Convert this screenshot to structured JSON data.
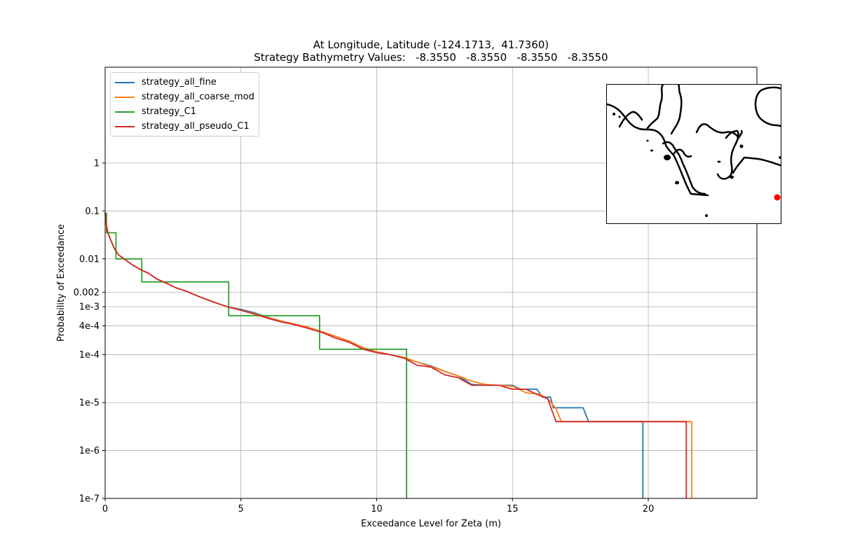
{
  "chart_data": {
    "type": "line",
    "title": "At Longitude, Latitude (-124.1713,  41.7360)",
    "subtitle": "Strategy Bathymetry Values:   -8.3550   -8.3550   -8.3550   -8.3550",
    "xlabel": "Exceedance Level for Zeta (m)",
    "ylabel": "Probability of Exceedance",
    "xlim": [
      0,
      24
    ],
    "ylim": [
      1e-07,
      100
    ],
    "yscale": "log",
    "grid": true,
    "legend_position": "top-left",
    "x_ticks": [
      0,
      5,
      10,
      15,
      20
    ],
    "x_tick_labels": [
      "0",
      "5",
      "10",
      "15",
      "20"
    ],
    "y_ticks": [
      1e-07,
      1e-06,
      1e-05,
      0.0001,
      0.0004,
      0.001,
      0.002,
      0.01,
      0.1,
      1
    ],
    "y_tick_labels": [
      "1e-7",
      "1e-6",
      "1e-5",
      "1e-4",
      "4e-4",
      "1e-3",
      "0.002",
      "0.01",
      "0.1",
      "1"
    ],
    "series": [
      {
        "name": "strategy_all_fine",
        "color": "#1f77b4",
        "x": [
          0.0,
          0.05,
          0.1,
          0.2,
          0.35,
          0.5,
          0.75,
          1.0,
          1.3,
          1.6,
          1.9,
          2.2,
          2.6,
          3.0,
          3.5,
          4.0,
          4.5,
          5.0,
          5.5,
          6.0,
          6.5,
          7.0,
          7.5,
          8.0,
          8.5,
          9.0,
          9.5,
          10.0,
          10.5,
          11.0,
          11.5,
          12.0,
          12.5,
          13.0,
          13.5,
          14.0,
          14.5,
          15.0,
          15.3,
          15.9,
          16.1,
          16.4,
          16.5,
          17.6,
          17.8,
          19.8,
          19.8
        ],
        "y": [
          0.09,
          0.05,
          0.035,
          0.025,
          0.016,
          0.012,
          0.0095,
          0.0075,
          0.006,
          0.005,
          0.0038,
          0.0032,
          0.0025,
          0.0021,
          0.0016,
          0.00125,
          0.001,
          0.00088,
          0.00075,
          0.0006,
          0.0005,
          0.00043,
          0.00037,
          0.00029,
          0.00024,
          0.00019,
          0.00014,
          0.000115,
          0.0001,
          8.5e-05,
          7e-05,
          5.8e-05,
          4.5e-05,
          3.6e-05,
          2.4e-05,
          2.3e-05,
          2.3e-05,
          2.3e-05,
          1.9e-05,
          1.9e-05,
          1.3e-05,
          1.3e-05,
          7.8e-06,
          7.8e-06,
          4e-06,
          4e-06,
          1e-07
        ]
      },
      {
        "name": "strategy_all_coarse_mod",
        "color": "#ff7f0e",
        "x": [
          0.0,
          0.05,
          0.1,
          0.2,
          0.35,
          0.5,
          0.75,
          1.0,
          1.3,
          1.6,
          1.9,
          2.2,
          2.6,
          3.0,
          3.5,
          4.0,
          4.5,
          5.0,
          5.5,
          6.0,
          6.5,
          7.0,
          7.5,
          8.0,
          8.5,
          9.0,
          9.5,
          10.0,
          10.5,
          11.0,
          11.5,
          12.0,
          12.5,
          13.0,
          13.5,
          14.0,
          14.5,
          15.0,
          15.5,
          16.0,
          16.3,
          16.6,
          16.8,
          21.6,
          21.6
        ],
        "y": [
          0.09,
          0.05,
          0.035,
          0.025,
          0.016,
          0.012,
          0.0095,
          0.0075,
          0.006,
          0.005,
          0.0038,
          0.0032,
          0.0025,
          0.0021,
          0.0016,
          0.00125,
          0.001,
          0.00085,
          0.00072,
          0.00059,
          0.0005,
          0.00043,
          0.00037,
          0.0003,
          0.00024,
          0.00019,
          0.00014,
          0.000115,
          0.0001,
          8.8e-05,
          7e-05,
          5.6e-05,
          4.5e-05,
          3.6e-05,
          2.8e-05,
          2.4e-05,
          2.3e-05,
          2.2e-05,
          1.6e-05,
          1.5e-05,
          1.2e-05,
          7.5e-06,
          4e-06,
          4e-06,
          1e-07
        ]
      },
      {
        "name": "strategy_C1",
        "color": "#2ca02c",
        "x": [
          0.0,
          0.05,
          0.05,
          0.4,
          0.4,
          1.35,
          1.35,
          4.55,
          4.55,
          7.9,
          7.9,
          11.1,
          11.1
        ],
        "y": [
          0.09,
          0.09,
          0.035,
          0.035,
          0.01,
          0.01,
          0.0033,
          0.0033,
          0.00065,
          0.00065,
          0.00013,
          0.00013,
          1e-07
        ]
      },
      {
        "name": "strategy_all_pseudo_C1",
        "color": "#d62728",
        "x": [
          0.0,
          0.05,
          0.1,
          0.2,
          0.35,
          0.5,
          0.75,
          1.0,
          1.3,
          1.6,
          1.9,
          2.2,
          2.6,
          3.0,
          3.5,
          4.0,
          4.5,
          5.0,
          5.5,
          6.0,
          6.5,
          7.0,
          7.5,
          8.0,
          8.5,
          9.0,
          9.5,
          10.0,
          10.5,
          11.0,
          11.5,
          12.0,
          12.5,
          13.0,
          13.5,
          14.0,
          14.5,
          15.0,
          15.5,
          16.0,
          16.3,
          16.6,
          21.4,
          21.4
        ],
        "y": [
          0.09,
          0.05,
          0.035,
          0.025,
          0.016,
          0.012,
          0.0095,
          0.0075,
          0.006,
          0.005,
          0.0038,
          0.0032,
          0.0025,
          0.0021,
          0.0016,
          0.00125,
          0.001,
          0.00085,
          0.0007,
          0.00057,
          0.00048,
          0.00042,
          0.00035,
          0.00029,
          0.00022,
          0.00018,
          0.00013,
          0.00011,
          0.0001,
          8.5e-05,
          6e-05,
          5.5e-05,
          3.8e-05,
          3.3e-05,
          2.3e-05,
          2.3e-05,
          2.3e-05,
          1.9e-05,
          1.9e-05,
          1.4e-05,
          1.2e-05,
          4e-06,
          4e-06,
          1e-07
        ]
      }
    ]
  },
  "inset_map": {
    "marker_color": "#ff0000",
    "line_color": "#000000"
  }
}
